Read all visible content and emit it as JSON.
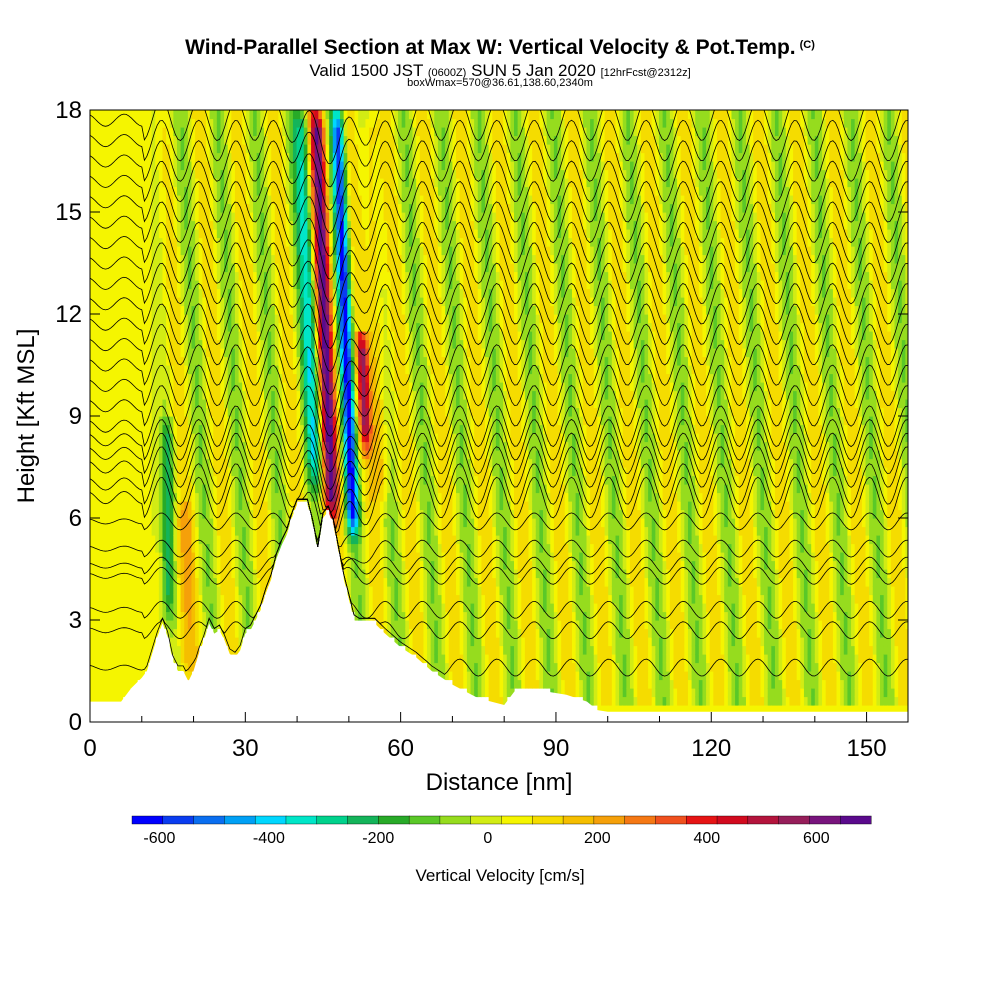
{
  "header": {
    "title": "Wind-Parallel Section at Max W: Vertical Velocity & Pot.Temp.",
    "copyright": "(C)",
    "subtitle_a": "Valid 1500 JST",
    "subtitle_b": "(0600Z)",
    "subtitle_c": "SUN 5 Jan 2020",
    "subtitle_d": "[12hrFcst@2312z]",
    "subtitle2": "boxWmax=570@36.61,138.60,2340m"
  },
  "chart_data": {
    "type": "heatmap",
    "title": "Wind-Parallel Section at Max W: Vertical Velocity & Pot.Temp.",
    "xlabel": "Distance [nm]",
    "ylabel": "Height [Kft MSL]",
    "xlim": [
      0,
      158
    ],
    "ylim": [
      0,
      18
    ],
    "xticks": [
      0,
      30,
      60,
      90,
      120,
      150
    ],
    "yticks": [
      0,
      3,
      6,
      9,
      12,
      15,
      18
    ],
    "colorbar": {
      "label": "Vertical Velocity [cm/s]",
      "ticks": [
        -600,
        -400,
        -200,
        0,
        200,
        400,
        600
      ],
      "range": [
        -650,
        700
      ],
      "colors": [
        "#0000ff",
        "#0a3cf0",
        "#0a6ef0",
        "#00a0f5",
        "#00d7ff",
        "#00e6c8",
        "#00d28c",
        "#14b45a",
        "#28aa28",
        "#5ac828",
        "#96dc1e",
        "#d2ec14",
        "#f5f500",
        "#f5dc00",
        "#f5be00",
        "#f5a00a",
        "#f57814",
        "#f0501e",
        "#e61414",
        "#d20a1e",
        "#b4143c",
        "#961e5a",
        "#78147d",
        "#5a0a8c"
      ]
    },
    "terrain_profile": {
      "x": [
        0,
        6,
        8,
        10,
        11,
        12,
        13,
        14,
        15,
        16,
        17,
        18,
        19,
        20,
        21,
        22,
        23,
        24,
        25,
        26,
        27,
        28,
        29,
        30,
        31,
        32,
        33,
        34,
        35,
        36,
        37,
        38,
        39,
        40,
        41,
        42,
        43,
        44,
        45,
        46,
        47,
        48,
        49,
        50,
        51,
        52,
        55,
        57,
        60,
        63,
        66,
        70,
        75,
        80,
        82,
        88,
        92,
        96,
        98,
        100,
        102,
        158
      ],
      "y": [
        0.6,
        0.6,
        1.0,
        1.3,
        1.5,
        2.0,
        2.5,
        2.9,
        2.5,
        1.8,
        1.5,
        1.5,
        1.2,
        1.5,
        2.0,
        2.4,
        2.9,
        2.6,
        2.7,
        2.4,
        2.0,
        1.9,
        2.1,
        2.6,
        2.7,
        3.0,
        3.3,
        3.8,
        4.2,
        4.8,
        5.2,
        5.5,
        6.0,
        6.4,
        6.4,
        6.4,
        5.8,
        5.0,
        6.0,
        6.2,
        5.8,
        5.0,
        4.2,
        3.6,
        3.0,
        2.9,
        2.9,
        2.6,
        2.2,
        1.9,
        1.5,
        1.1,
        0.7,
        0.5,
        0.9,
        0.9,
        0.8,
        0.6,
        0.35,
        0.3,
        0.3,
        0.3
      ]
    },
    "vertical_velocity_features": [
      {
        "x": 46,
        "ymin": 5.5,
        "ymax": 18,
        "w": 570,
        "half_width": 1.5
      },
      {
        "x": 50,
        "ymin": 5.0,
        "ymax": 18,
        "w": -560,
        "half_width": 1.2
      },
      {
        "x": 53,
        "ymin": 7.5,
        "ymax": 11.5,
        "w": 430,
        "half_width": 1.2
      },
      {
        "x": 43,
        "ymin": 6.5,
        "ymax": 18,
        "w": -300,
        "half_width": 1.6
      },
      {
        "x": 56,
        "ymin": 6.0,
        "ymax": 18,
        "w": 180,
        "half_width": 1.5
      },
      {
        "x": 18,
        "ymin": 0.5,
        "ymax": 6.5,
        "w": 120,
        "half_width": 2.0
      },
      {
        "x": 15,
        "ymin": 2.5,
        "ymax": 9,
        "w": -180,
        "half_width": 1.2
      }
    ],
    "wave_pattern": {
      "wavelength_nm": 7.2,
      "amplitude_cm_s": 110,
      "x_start": 12,
      "x_end": 158,
      "ymin": 0.4,
      "ymax": 18
    },
    "potential_temperature_contours": {
      "count": 28,
      "base_heights": [
        1.6,
        2.7,
        3.3,
        4.3,
        4.6,
        5.1,
        5.9,
        6.6,
        7.0,
        7.5,
        7.9,
        8.3,
        8.7,
        9.3,
        9.9,
        10.5,
        11.1,
        11.7,
        12.3,
        12.9,
        13.5,
        14.1,
        14.7,
        15.3,
        15.9,
        16.5,
        17.1,
        17.7
      ]
    }
  }
}
